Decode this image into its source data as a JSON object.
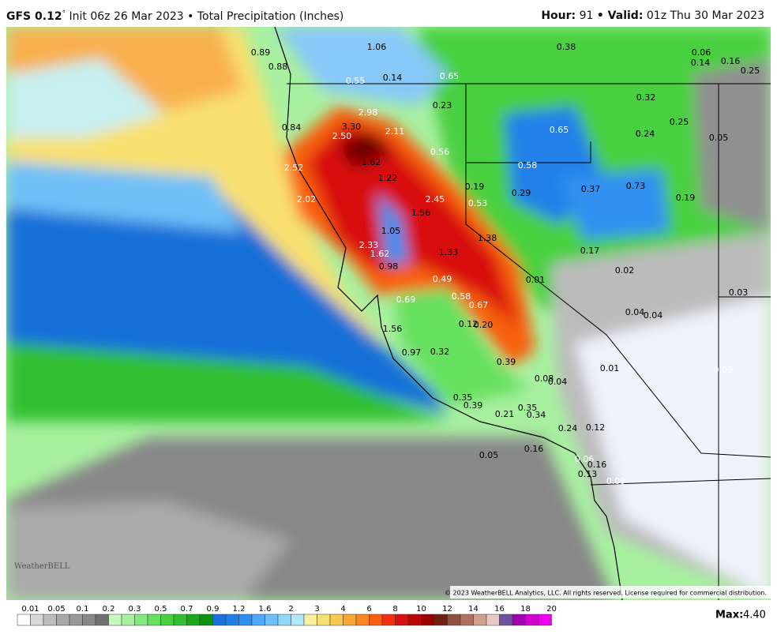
{
  "header": {
    "model": "GFS 0.12",
    "degree": "°",
    "info": "Init 06z 26 Mar 2023 • Total Precipitation (Inches)",
    "hour_label": "Hour:",
    "hour": "91",
    "valid_label": "• Valid:",
    "valid": "01z Thu 30 Mar 2023"
  },
  "map": {
    "labels": [
      "0.89",
      "0.88",
      "1.06",
      "0.55",
      "0.14",
      "0.65",
      "0.38",
      "0.06",
      "0.14",
      "0.16",
      "0.25",
      "0.32",
      "0.23",
      "2.98",
      "0.84",
      "3.30",
      "2.50",
      "2.11",
      "0.65",
      "0.24",
      "0.25",
      "0.05",
      "0.56",
      "1.62",
      "2.52",
      "0.58",
      "1.22",
      "0.19",
      "0.29",
      "0.37",
      "0.73",
      "0.19",
      "2.02",
      "2.45",
      "0.53",
      "1.56",
      "1.05",
      "1.38",
      "2.33",
      "1.62",
      "1.33",
      "0.17",
      "0.98",
      "0.02",
      "0.49",
      "0.01",
      "0.58",
      "0.67",
      "0.69",
      "0.03",
      "0.04",
      "0.04",
      "0.12",
      "0.20",
      "1.56",
      "0.97",
      "0.32",
      "0.39",
      "0.01",
      "0.09",
      "0.08",
      "0.04",
      "0.35",
      "0.39",
      "0.35",
      "0.34",
      "0.21",
      "0.24",
      "0.12",
      "0.05",
      "0.16",
      "0.06",
      "0.16",
      "0.13",
      "0.09"
    ],
    "copyright": "© 2023 WeatherBELL Analytics, LLC. All rights reserved. License required for commercial distribution.",
    "logo": "WeatherBELL"
  },
  "legend": {
    "ticks": [
      "0.01",
      "0.05",
      "0.1",
      "0.2",
      "0.3",
      "0.5",
      "0.7",
      "0.9",
      "1.2",
      "1.6",
      "2",
      "3",
      "4",
      "6",
      "8",
      "10",
      "12",
      "14",
      "16",
      "18",
      "20"
    ],
    "colors": [
      "#ffffff",
      "#d8d8d8",
      "#bcbcbc",
      "#a8a8a8",
      "#989898",
      "#888888",
      "#707070",
      "#c8f8c0",
      "#a8f0a0",
      "#88e880",
      "#68e060",
      "#48d040",
      "#30c030",
      "#18a818",
      "#109010",
      "#1870d8",
      "#2080e8",
      "#3090f0",
      "#50a8f8",
      "#70c0f8",
      "#90d8f8",
      "#b0e8f8",
      "#f8f0a0",
      "#f8e070",
      "#f8c850",
      "#f8a830",
      "#f88820",
      "#f86010",
      "#f03010",
      "#d81010",
      "#b80808",
      "#980000",
      "#702010",
      "#905040",
      "#b07060",
      "#d0a090",
      "#e8c8c0",
      "#7050a0",
      "#a000b0",
      "#d000d0",
      "#f000f0"
    ],
    "max_label": "Max:",
    "max": "4.40"
  }
}
